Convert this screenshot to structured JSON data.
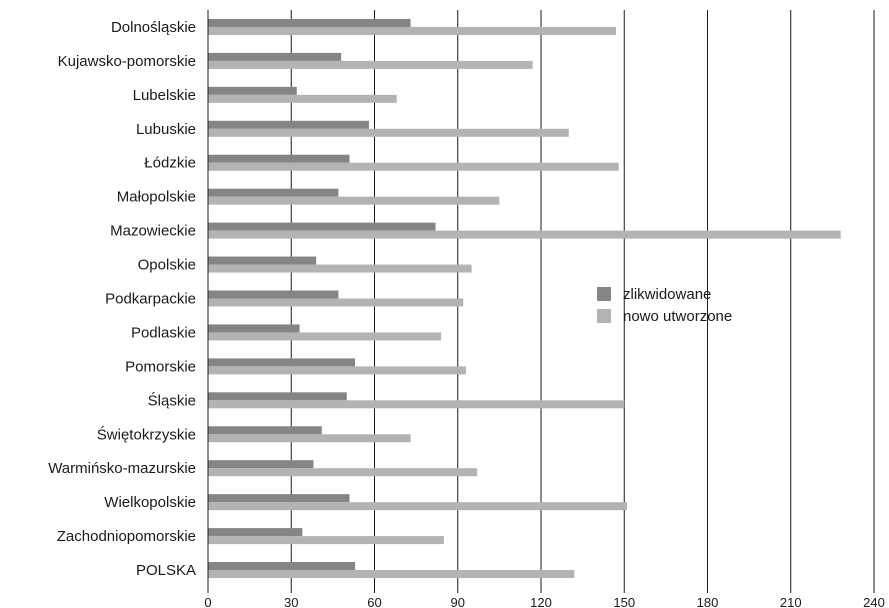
{
  "chart_data": {
    "type": "bar",
    "orientation": "horizontal",
    "categories": [
      "Dolnośląskie",
      "Kujawsko-pomorskie",
      "Lubelskie",
      "Lubuskie",
      "Łódzkie",
      "Małopolskie",
      "Mazowieckie",
      "Opolskie",
      "Podkarpackie",
      "Podlaskie",
      "Pomorskie",
      "Śląskie",
      "Świętokrzyskie",
      "Warmińsko-mazurskie",
      "Wielkopolskie",
      "Zachodniopomorskie",
      "POLSKA"
    ],
    "series": [
      {
        "name": "zlikwidowane",
        "color": "#858585",
        "values": [
          73,
          48,
          32,
          58,
          51,
          47,
          82,
          39,
          47,
          33,
          53,
          50,
          41,
          38,
          51,
          34,
          53
        ]
      },
      {
        "name": "nowo utworzone",
        "color": "#b3b3b3",
        "values": [
          147,
          117,
          68,
          130,
          148,
          105,
          228,
          95,
          92,
          84,
          93,
          150,
          73,
          97,
          151,
          85,
          132
        ]
      }
    ],
    "xlim": [
      0,
      240
    ],
    "xticks": [
      "0",
      "30",
      "60",
      "90",
      "120",
      "150",
      "180",
      "210",
      "240"
    ],
    "grid": "vertical",
    "legend_position": "right"
  }
}
